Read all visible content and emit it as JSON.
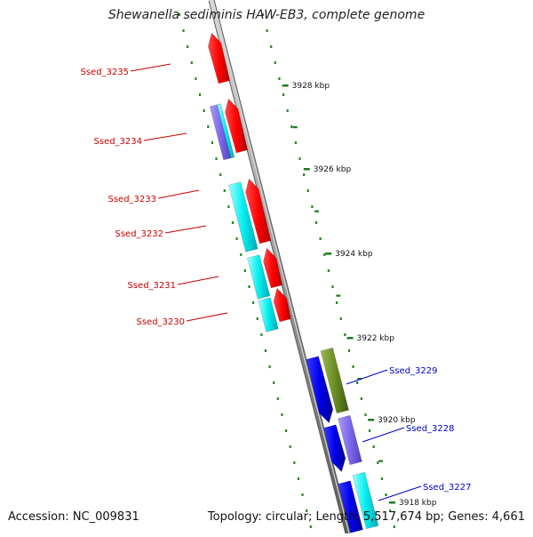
{
  "title": "Shewanella sediminis HAW-EB3, complete genome",
  "footer": {
    "accession_label": "Accession: NC_009831",
    "topology": "Topology: circular;",
    "length": "Length: 5,517,674 bp;",
    "genes": "Genes: 4,661"
  },
  "ticks": [
    {
      "label": "3928 kbp"
    },
    {
      "label": "3926 kbp"
    },
    {
      "label": "3924 kbp"
    },
    {
      "label": "3922 kbp"
    },
    {
      "label": "3920 kbp"
    },
    {
      "label": "3918 kbp"
    }
  ],
  "genes": [
    {
      "label": "Ssed_3235",
      "strand": "left",
      "color": "#cc0000"
    },
    {
      "label": "Ssed_3234",
      "strand": "left",
      "color": "#cc0000"
    },
    {
      "label": "Ssed_3233",
      "strand": "left",
      "color": "#cc0000"
    },
    {
      "label": "Ssed_3232",
      "strand": "left",
      "color": "#cc0000"
    },
    {
      "label": "Ssed_3231",
      "strand": "left",
      "color": "#cc0000"
    },
    {
      "label": "Ssed_3230",
      "strand": "left",
      "color": "#cc0000"
    },
    {
      "label": "Ssed_3229",
      "strand": "right",
      "color": "#0000cc"
    },
    {
      "label": "Ssed_3228",
      "strand": "right",
      "color": "#0000cc"
    },
    {
      "label": "Ssed_3227",
      "strand": "right",
      "color": "#0000cc"
    }
  ],
  "colors": {
    "forward_cds": "#ff0000",
    "reverse_cds": "#0000ff",
    "cog_cyan": "#00ffff",
    "cog_olive": "#6b8e23",
    "cog_lavender": "#7b68ee",
    "cog_purple": "#6a5acd",
    "backbone": "#8c8c8c",
    "tick": "#1f7a1f"
  }
}
